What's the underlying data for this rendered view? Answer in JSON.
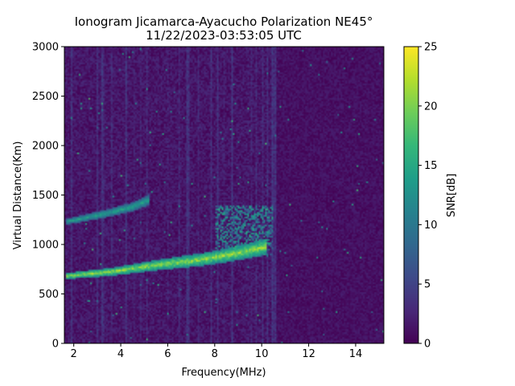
{
  "chart_data": {
    "type": "heatmap",
    "title_line1": "Ionogram Jicamarca-Ayacucho Polarization NE45°",
    "title_line2": "11/22/2023-03:53:05 UTC",
    "xlabel": "Frequency(MHz)",
    "ylabel": "Virtual Distance(Km)",
    "xlim": [
      1.6,
      15.2
    ],
    "ylim": [
      0,
      3000
    ],
    "xticks": [
      2,
      4,
      6,
      8,
      10,
      12,
      14
    ],
    "yticks": [
      0,
      500,
      1000,
      1500,
      2000,
      2500,
      3000
    ],
    "colorbar": {
      "label": "SNR[dB]",
      "range": [
        0,
        25
      ],
      "ticks": [
        0,
        5,
        10,
        15,
        20,
        25
      ],
      "colormap": "viridis"
    },
    "traces": [
      {
        "points": [
          [
            1.7,
            680
          ],
          [
            2.5,
            700
          ],
          [
            3.5,
            720
          ],
          [
            4.5,
            755
          ],
          [
            5.5,
            790
          ],
          [
            6.5,
            820
          ],
          [
            7.5,
            850
          ],
          [
            8.5,
            890
          ],
          [
            9.5,
            940
          ],
          [
            10.2,
            980
          ]
        ],
        "snr": 24
      },
      {
        "points": [
          [
            1.7,
            1230
          ],
          [
            2.5,
            1270
          ],
          [
            3.5,
            1320
          ],
          [
            4.5,
            1380
          ],
          [
            5.2,
            1450
          ]
        ],
        "snr": 16
      }
    ],
    "spread": {
      "x_range": [
        8.0,
        10.5
      ],
      "distance_range": [
        880,
        1400
      ],
      "snr": 12
    }
  }
}
